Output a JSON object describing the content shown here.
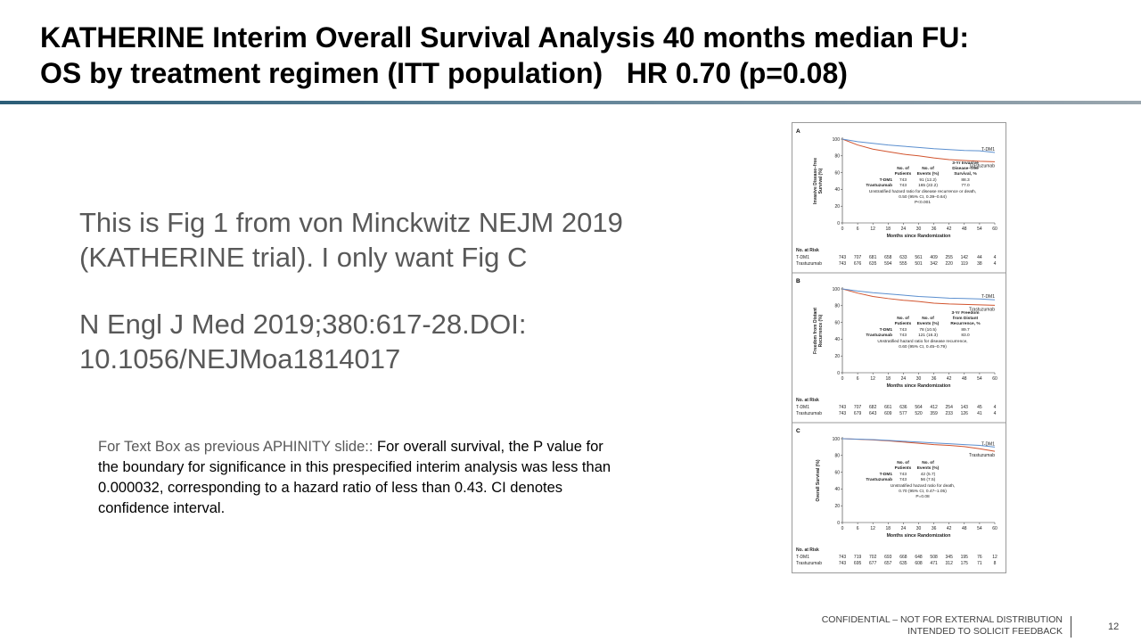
{
  "slide": {
    "title_line1": "KATHERINE Interim Overall Survival Analysis 40 months median FU:",
    "title_line2": "OS by treatment regimen (ITT population)   HR 0.70 (p=0.08)",
    "body_paragraph1": "This is Fig 1 from von Minckwitz NEJM 2019 (KATHERINE trial).  I only want Fig C",
    "body_paragraph2": "N Engl J Med 2019;380:617-28.DOI: 10.1056/NEJMoa1814017",
    "note_prefix": "For Text Box as previous APHINITY slide:: ",
    "note_text": "For overall survival, the P value for the boundary for significance in this prespecified interim analysis was less than 0.000032, corresponding to a hazard ratio of less than 0.43. CI denotes confidence interval.",
    "footer_line1": "CONFIDENTIAL – NOT FOR EXTERNAL DISTRIBUTION",
    "footer_line2": "INTENDED TO SOLICIT FEEDBACK",
    "page_number": "12"
  },
  "colors": {
    "tdm1": "#5b8fcf",
    "trastuzumab": "#d2542e"
  },
  "figure": {
    "x_ticks": [
      "0",
      "6",
      "12",
      "18",
      "24",
      "30",
      "36",
      "42",
      "48",
      "54",
      "60"
    ],
    "y_ticks": [
      "0",
      "20",
      "40",
      "60",
      "80",
      "100"
    ],
    "x_axis_label": "Months since Randomization",
    "series_label_tdm1": "T-DM1",
    "series_label_trastuzumab": "Trastuzumab",
    "at_risk_header": "No. at Risk",
    "panels": [
      {
        "letter": "A",
        "ylabel_line1": "Invasive Disease–free",
        "ylabel_line2": "Survival (%)",
        "table_header": [
          "No. of",
          "Patients",
          "No. of",
          "Events (%)",
          "3-Yr Invasive",
          "Disease–free",
          "Survival, %"
        ],
        "tdm1_row": [
          "743",
          "91 (12.2)",
          "88.3"
        ],
        "tras_row": [
          "743",
          "165 (22.2)",
          "77.0"
        ],
        "hr_line1": "Unstratified hazard ratio for disease recurrence or death,",
        "hr_line2": "0.50 (95% CI, 0.39–0.64)",
        "p_line": "P<0.001",
        "risk_tdm1": [
          "743",
          "707",
          "681",
          "658",
          "633",
          "561",
          "409",
          "255",
          "142",
          "44",
          "4"
        ],
        "risk_tras": [
          "743",
          "676",
          "635",
          "594",
          "555",
          "501",
          "342",
          "220",
          "119",
          "38",
          "4"
        ],
        "km_tdm1": [
          [
            0,
            100
          ],
          [
            6,
            97
          ],
          [
            12,
            95
          ],
          [
            18,
            93
          ],
          [
            24,
            91.5
          ],
          [
            30,
            90
          ],
          [
            36,
            88.5
          ],
          [
            42,
            87.5
          ],
          [
            48,
            86.5
          ],
          [
            54,
            86
          ],
          [
            60,
            84
          ]
        ],
        "km_tras": [
          [
            0,
            100
          ],
          [
            6,
            93
          ],
          [
            12,
            88
          ],
          [
            18,
            85
          ],
          [
            24,
            82
          ],
          [
            30,
            80
          ],
          [
            36,
            77.5
          ],
          [
            42,
            75.5
          ],
          [
            48,
            74.5
          ],
          [
            54,
            73.5
          ],
          [
            60,
            73
          ]
        ]
      },
      {
        "letter": "B",
        "ylabel_line1": "Freedom from Distant",
        "ylabel_line2": "Recurrence (%)",
        "table_header": [
          "No. of",
          "Patients",
          "No. of",
          "Events (%)",
          "3-Yr Freedom",
          "from Distant",
          "Recurrence, %"
        ],
        "tdm1_row": [
          "743",
          "78 (10.5)",
          "89.7"
        ],
        "tras_row": [
          "743",
          "121 (16.3)",
          "83.0"
        ],
        "hr_line1": "Unstratified hazard ratio for disease recurrence,",
        "hr_line2": "0.60 (95% CI, 0.45–0.79)",
        "p_line": "",
        "risk_tdm1": [
          "743",
          "707",
          "682",
          "661",
          "636",
          "564",
          "412",
          "254",
          "143",
          "45",
          "4"
        ],
        "risk_tras": [
          "743",
          "679",
          "643",
          "609",
          "577",
          "520",
          "359",
          "233",
          "126",
          "41",
          "4"
        ],
        "km_tdm1": [
          [
            0,
            100
          ],
          [
            6,
            97.5
          ],
          [
            12,
            95.5
          ],
          [
            18,
            94
          ],
          [
            24,
            92.5
          ],
          [
            30,
            91
          ],
          [
            36,
            90
          ],
          [
            42,
            89
          ],
          [
            48,
            88.5
          ],
          [
            54,
            88
          ],
          [
            60,
            87
          ]
        ],
        "km_tras": [
          [
            0,
            100
          ],
          [
            6,
            95
          ],
          [
            12,
            91
          ],
          [
            18,
            88.5
          ],
          [
            24,
            86.5
          ],
          [
            30,
            85
          ],
          [
            36,
            83
          ],
          [
            42,
            82
          ],
          [
            48,
            81.5
          ],
          [
            54,
            81
          ],
          [
            60,
            80.5
          ]
        ]
      },
      {
        "letter": "C",
        "ylabel_line1": "Overall Survival (%)",
        "ylabel_line2": "",
        "table_header": [
          "No. of",
          "Patients",
          "No. of",
          "Events (%)",
          "",
          "",
          ""
        ],
        "tdm1_row": [
          "743",
          "42 (5.7)",
          ""
        ],
        "tras_row": [
          "743",
          "56 (7.5)",
          ""
        ],
        "hr_line1": "Unstratified hazard ratio for death,",
        "hr_line2": "0.70 (95% CI, 0.47–1.05)",
        "p_line": "P=0.08",
        "risk_tdm1": [
          "743",
          "719",
          "702",
          "693",
          "668",
          "648",
          "508",
          "345",
          "195",
          "76",
          "12"
        ],
        "risk_tras": [
          "743",
          "695",
          "677",
          "657",
          "635",
          "608",
          "471",
          "312",
          "175",
          "71",
          "8"
        ],
        "km_tdm1": [
          [
            0,
            100
          ],
          [
            6,
            99.5
          ],
          [
            12,
            99
          ],
          [
            18,
            98
          ],
          [
            24,
            97
          ],
          [
            30,
            96
          ],
          [
            36,
            95
          ],
          [
            42,
            94
          ],
          [
            48,
            93
          ],
          [
            54,
            92
          ],
          [
            60,
            90
          ]
        ],
        "km_tras": [
          [
            0,
            100
          ],
          [
            6,
            99.3
          ],
          [
            12,
            98.5
          ],
          [
            18,
            97.5
          ],
          [
            24,
            96
          ],
          [
            30,
            94.5
          ],
          [
            36,
            93
          ],
          [
            42,
            92
          ],
          [
            48,
            90.5
          ],
          [
            54,
            88
          ],
          [
            60,
            85
          ]
        ]
      }
    ]
  }
}
